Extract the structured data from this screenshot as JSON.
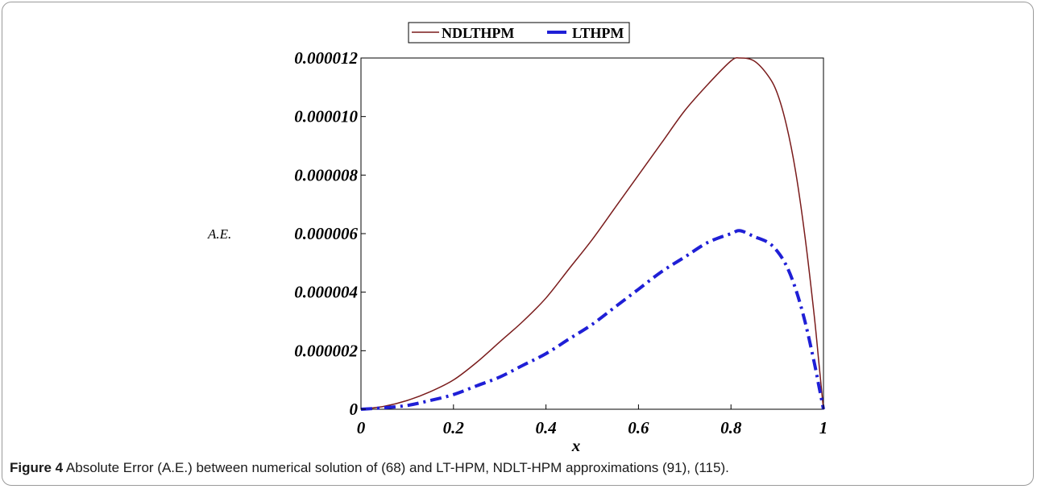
{
  "chart_data": {
    "type": "line",
    "xlabel": "x",
    "ylabel": "A.E.",
    "xlim": [
      0,
      1
    ],
    "ylim": [
      0,
      1.2e-05
    ],
    "x_ticks": [
      "0",
      "0.2",
      "0.4",
      "0.6",
      "0.8",
      "1"
    ],
    "x_tick_values": [
      0,
      0.2,
      0.4,
      0.6,
      0.8,
      1
    ],
    "y_ticks": [
      "0",
      "0.000002",
      "0.000004",
      "0.000006",
      "0.000008",
      "0.000010",
      "0.000012"
    ],
    "y_tick_values": [
      0,
      2e-06,
      4e-06,
      6e-06,
      8e-06,
      1e-05,
      1.2e-05
    ],
    "legend": {
      "placement": "top-center"
    },
    "series": [
      {
        "name": "NDLTHPM",
        "color": "#7a1c1c",
        "style": "solid",
        "x": [
          0,
          0.05,
          0.1,
          0.15,
          0.2,
          0.25,
          0.3,
          0.35,
          0.4,
          0.45,
          0.5,
          0.55,
          0.6,
          0.65,
          0.7,
          0.75,
          0.8,
          0.82,
          0.85,
          0.88,
          0.9,
          0.92,
          0.94,
          0.96,
          0.98,
          0.99,
          1
        ],
        "values": [
          0,
          1e-07,
          3e-07,
          6e-07,
          1e-06,
          1.6e-06,
          2.3e-06,
          3e-06,
          3.8e-06,
          4.8e-06,
          5.8e-06,
          6.9e-06,
          8e-06,
          9.1e-06,
          1.02e-05,
          1.11e-05,
          1.19e-05,
          1.2e-05,
          1.19e-05,
          1.14e-05,
          1.08e-05,
          9.7e-06,
          8.1e-06,
          5.9e-06,
          3.2e-06,
          1.6e-06,
          0
        ]
      },
      {
        "name": "LTHPM",
        "color": "#1f1fd6",
        "style": "dash-dot",
        "x": [
          0,
          0.05,
          0.1,
          0.15,
          0.2,
          0.25,
          0.3,
          0.35,
          0.4,
          0.45,
          0.5,
          0.55,
          0.6,
          0.65,
          0.7,
          0.75,
          0.8,
          0.82,
          0.85,
          0.88,
          0.9,
          0.92,
          0.94,
          0.96,
          0.98,
          0.99,
          1
        ],
        "values": [
          0,
          5e-08,
          1.3e-07,
          3e-07,
          5e-07,
          8e-07,
          1.1e-06,
          1.5e-06,
          1.9e-06,
          2.4e-06,
          2.9e-06,
          3.5e-06,
          4.1e-06,
          4.7e-06,
          5.2e-06,
          5.7e-06,
          6e-06,
          6.1e-06,
          5.9e-06,
          5.7e-06,
          5.4e-06,
          4.9e-06,
          4.1e-06,
          3e-06,
          1.6e-06,
          8e-07,
          0
        ]
      }
    ]
  },
  "caption": {
    "label": "Figure 4",
    "text": " Absolute Error (A.E.) between numerical solution of (68) and LT-HPM, NDLT-HPM approximations (91), (115)."
  }
}
